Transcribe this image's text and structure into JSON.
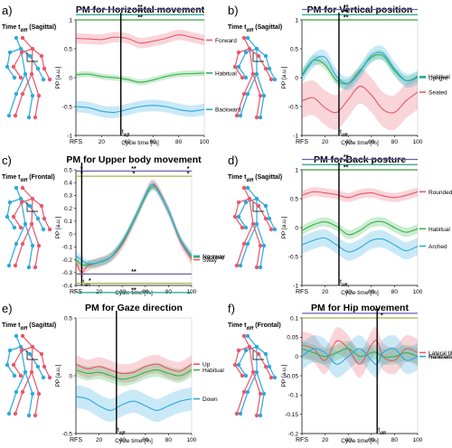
{
  "colors": {
    "top": "#e8576a",
    "habitual": "#36b24a",
    "bottom": "#2aa9df",
    "sig_purple": "#6b5fa8",
    "sig_olive": "#a8b24a",
    "sig_teal": "#2a9d8f",
    "sig_green": "#3c9a3c"
  },
  "chart_data": [
    {
      "panel_label": "a)",
      "type": "line",
      "title": "PM for Horizontal movement",
      "timing_label": "Time t",
      "timing_sub": "diff",
      "timing_view": "(Sagittal)",
      "xlabel": "Cycle time [%]",
      "ylabel": "PP [a.u.]",
      "xlim": [
        0,
        100
      ],
      "ylim": [
        -1,
        1
      ],
      "xticks": [
        "RFS",
        "20",
        "40",
        "60",
        "80",
        "100"
      ],
      "yticks": [
        "-1",
        "-0.5",
        "0",
        "0.5",
        "1"
      ],
      "ytick_values": [
        -1,
        -0.5,
        0,
        0.5,
        1
      ],
      "tdiff": 35,
      "tdiff_label": "t",
      "tdiff_sub": "diff",
      "significance": [
        {
          "y": 1.18,
          "color": "#6b5fa8",
          "stars": [
            {
              "x": 50,
              "text": "**"
            }
          ]
        },
        {
          "y": 1.09,
          "color": "#2a9d8f",
          "stars": [
            {
              "x": 50,
              "text": "**"
            }
          ]
        },
        {
          "y": 1.0,
          "color": "#3c9a3c",
          "stars": [
            {
              "x": 50,
              "text": "**"
            }
          ]
        }
      ],
      "series": [
        {
          "name": "Forward",
          "color": "#e8576a",
          "band": 0.09,
          "x": [
            0,
            10,
            20,
            30,
            40,
            50,
            60,
            70,
            80,
            90,
            100
          ],
          "values": [
            0.68,
            0.67,
            0.66,
            0.7,
            0.68,
            0.6,
            0.63,
            0.68,
            0.74,
            0.7,
            0.65
          ]
        },
        {
          "name": "Habitual",
          "color": "#36b24a",
          "band": 0.05,
          "x": [
            0,
            10,
            20,
            30,
            40,
            50,
            60,
            70,
            80,
            90,
            100
          ],
          "values": [
            0.05,
            0.06,
            0.02,
            0.0,
            -0.03,
            -0.08,
            -0.04,
            0.02,
            0.06,
            0.07,
            0.08
          ]
        },
        {
          "name": "Backward",
          "color": "#2aa9df",
          "band": 0.1,
          "x": [
            0,
            10,
            20,
            30,
            40,
            50,
            60,
            70,
            80,
            90,
            100
          ],
          "values": [
            -0.5,
            -0.52,
            -0.58,
            -0.6,
            -0.55,
            -0.5,
            -0.48,
            -0.5,
            -0.55,
            -0.58,
            -0.55
          ]
        }
      ]
    },
    {
      "panel_label": "b)",
      "type": "line",
      "title": "PM for Vertical position",
      "timing_label": "Time t",
      "timing_sub": "diff",
      "timing_view": "(Sagittal)",
      "xlabel": "Cycle time [%]",
      "ylabel": "PP [a.u.]",
      "xlim": [
        0,
        100
      ],
      "ylim": [
        -1,
        1
      ],
      "xticks": [
        "RFS",
        "20",
        "40",
        "60",
        "80",
        "100"
      ],
      "yticks": [
        "-1",
        "-0.5",
        "0",
        "0.5",
        "1"
      ],
      "ytick_values": [
        -1,
        -0.5,
        0,
        0.5,
        1
      ],
      "tdiff": 32,
      "tdiff_label": "t",
      "tdiff_sub": "diff",
      "significance": [
        {
          "y": 1.18,
          "color": "#6b5fa8",
          "stars": [
            {
              "x": 38,
              "text": "**"
            }
          ]
        },
        {
          "y": 1.09,
          "color": "#2a9d8f",
          "stars": [
            {
              "x": 38,
              "text": "**"
            }
          ]
        },
        {
          "y": 1.0,
          "color": "#3c9a3c",
          "stars": [
            {
              "x": 38,
              "text": "**"
            }
          ]
        }
      ],
      "series": [
        {
          "name": "Seated",
          "color": "#e8576a",
          "band": 0.3,
          "x": [
            0,
            10,
            20,
            30,
            40,
            50,
            60,
            70,
            80,
            90,
            100
          ],
          "values": [
            -0.4,
            -0.35,
            -0.52,
            -0.6,
            -0.38,
            -0.15,
            -0.3,
            -0.55,
            -0.6,
            -0.4,
            -0.25
          ]
        },
        {
          "name": "Habitual",
          "color": "#36b24a",
          "band": 0.08,
          "x": [
            0,
            10,
            20,
            30,
            40,
            50,
            60,
            70,
            80,
            90,
            100
          ],
          "values": [
            0.05,
            0.3,
            0.22,
            -0.05,
            -0.1,
            0.12,
            0.35,
            0.38,
            0.12,
            -0.05,
            0.02
          ]
        },
        {
          "name": "Upright",
          "color": "#2aa9df",
          "band": 0.12,
          "x": [
            0,
            10,
            20,
            30,
            40,
            50,
            60,
            70,
            80,
            90,
            100
          ],
          "values": [
            0.02,
            0.3,
            0.35,
            0.02,
            -0.1,
            0.1,
            0.38,
            0.42,
            0.15,
            -0.05,
            0.0
          ]
        }
      ]
    },
    {
      "panel_label": "c)",
      "type": "line",
      "title": "PM for Upper body movement",
      "timing_label": "Time t",
      "timing_sub": "diff",
      "timing_view": "(Frontal)",
      "xlabel": "Cycle time [%]",
      "ylabel": "PP [a.u.]",
      "xlim": [
        0,
        100
      ],
      "ylim": [
        -0.4,
        0.5
      ],
      "xticks": [
        "RFS",
        "20",
        "40",
        "60",
        "80",
        "100"
      ],
      "yticks": [
        "-0.4",
        "-0.3",
        "-0.2",
        "-0.1",
        "0",
        "0.1",
        "0.2",
        "0.3",
        "0.4",
        "0.5"
      ],
      "ytick_values": [
        -0.4,
        -0.3,
        -0.2,
        -0.1,
        0,
        0.1,
        0.2,
        0.3,
        0.4,
        0.5
      ],
      "tdiff": 5,
      "tdiff_label": "t",
      "tdiff_sub": "diff",
      "significance": [
        {
          "y": 0.49,
          "color": "#6b5fa8",
          "stars": [
            {
              "x": 5,
              "text": "*"
            },
            {
              "x": 50,
              "text": "**"
            },
            {
              "x": 97,
              "text": "*"
            }
          ]
        },
        {
          "y": 0.45,
          "color": "#a8b24a",
          "stars": [
            {
              "x": 5,
              "text": "*"
            },
            {
              "x": 50,
              "text": "*"
            },
            {
              "x": 97,
              "text": "*"
            }
          ]
        }
      ],
      "series": [
        {
          "name": "Sway",
          "color": "#e8576a",
          "band": 0.04,
          "x": [
            0,
            5,
            10,
            20,
            30,
            40,
            50,
            60,
            65,
            70,
            80,
            90,
            100
          ],
          "values": [
            -0.22,
            -0.3,
            -0.25,
            -0.22,
            -0.18,
            -0.08,
            0.1,
            0.3,
            0.38,
            0.36,
            0.18,
            -0.05,
            -0.2
          ]
        },
        {
          "name": "Habitual",
          "color": "#36b24a",
          "band": 0.03,
          "x": [
            0,
            5,
            10,
            20,
            30,
            40,
            50,
            60,
            65,
            70,
            80,
            90,
            100
          ],
          "values": [
            -0.2,
            -0.24,
            -0.24,
            -0.22,
            -0.18,
            -0.07,
            0.1,
            0.29,
            0.36,
            0.35,
            0.18,
            -0.04,
            -0.18
          ]
        },
        {
          "name": "No sway",
          "color": "#2aa9df",
          "band": 0.03,
          "x": [
            0,
            5,
            10,
            20,
            30,
            40,
            50,
            60,
            65,
            70,
            80,
            90,
            100
          ],
          "values": [
            -0.17,
            -0.2,
            -0.23,
            -0.22,
            -0.18,
            -0.06,
            0.11,
            0.3,
            0.38,
            0.35,
            0.18,
            -0.04,
            -0.17
          ]
        }
      ]
    },
    {
      "panel_label": "d)",
      "type": "line",
      "title": "PM for Back posture",
      "timing_label": "Time t",
      "timing_sub": "diff",
      "timing_view": "(Sagittal)",
      "xlabel": "Cycle time [%]",
      "ylabel": "PP [a.u.]",
      "xlim": [
        0,
        100
      ],
      "ylim": [
        -1,
        1
      ],
      "xticks": [
        "RFS",
        "20",
        "40",
        "60",
        "80",
        "100"
      ],
      "yticks": [
        "-1",
        "-0.5",
        "0",
        "0.5",
        "1"
      ],
      "ytick_values": [
        -1,
        -0.5,
        0,
        0.5,
        1
      ],
      "tdiff": 32,
      "tdiff_label": "t",
      "tdiff_sub": "diff",
      "significance": [
        {
          "y": 1.18,
          "color": "#6b5fa8",
          "stars": [
            {
              "x": 38,
              "text": "**"
            }
          ]
        },
        {
          "y": 1.09,
          "color": "#2a9d8f",
          "stars": [
            {
              "x": 38,
              "text": "**"
            }
          ]
        },
        {
          "y": 1.0,
          "color": "#3c9a3c",
          "stars": [
            {
              "x": 38,
              "text": "**"
            }
          ]
        }
      ],
      "series": [
        {
          "name": "Rounded",
          "color": "#e8576a",
          "band": 0.08,
          "x": [
            0,
            10,
            20,
            30,
            40,
            50,
            60,
            70,
            80,
            90,
            100
          ],
          "values": [
            0.56,
            0.62,
            0.6,
            0.57,
            0.52,
            0.58,
            0.6,
            0.55,
            0.52,
            0.56,
            0.62
          ]
        },
        {
          "name": "Habitual",
          "color": "#36b24a",
          "band": 0.08,
          "x": [
            0,
            10,
            20,
            30,
            40,
            50,
            60,
            70,
            80,
            90,
            100
          ],
          "values": [
            -0.05,
            0.05,
            0.1,
            0.02,
            -0.12,
            -0.05,
            0.08,
            0.1,
            0.0,
            -0.08,
            -0.02
          ]
        },
        {
          "name": "Arched",
          "color": "#2aa9df",
          "band": 0.15,
          "x": [
            0,
            10,
            20,
            30,
            40,
            50,
            60,
            70,
            80,
            90,
            100
          ],
          "values": [
            -0.3,
            -0.22,
            -0.18,
            -0.3,
            -0.42,
            -0.35,
            -0.22,
            -0.2,
            -0.3,
            -0.4,
            -0.32
          ]
        }
      ]
    },
    {
      "panel_label": "e)",
      "type": "line",
      "title": "PM for Gaze direction",
      "timing_label": "Time t",
      "timing_sub": "diff",
      "timing_view": "(Sagittal)",
      "xlabel": "Cycle time [%]",
      "ylabel": "PP [a.u.]",
      "xlim": [
        0,
        100
      ],
      "ylim": [
        -0.5,
        0.5
      ],
      "xticks": [
        "RFS",
        "20",
        "40",
        "60",
        "80",
        "100"
      ],
      "yticks": [
        "-0.5",
        "0",
        "0.5"
      ],
      "ytick_values": [
        -0.5,
        0,
        0.5
      ],
      "tdiff": 35,
      "tdiff_label": "t",
      "tdiff_sub": "diff",
      "significance": [
        {
          "y": 0.88,
          "color": "#6b5fa8",
          "stars": [
            {
              "x": 50,
              "text": "**"
            }
          ]
        },
        {
          "y": 0.8,
          "color": "#a8b24a",
          "stars": [
            {
              "x": 12,
              "text": "*"
            }
          ]
        },
        {
          "y": 0.72,
          "color": "#2a9d8f",
          "stars": [
            {
              "x": 50,
              "text": "**"
            }
          ]
        }
      ],
      "series": [
        {
          "name": "Up",
          "color": "#e8576a",
          "band": 0.08,
          "x": [
            0,
            10,
            20,
            30,
            40,
            50,
            60,
            70,
            80,
            90,
            100
          ],
          "values": [
            0.1,
            0.06,
            0.08,
            0.05,
            0.02,
            0.03,
            0.08,
            0.1,
            0.06,
            0.04,
            0.1
          ]
        },
        {
          "name": "Habitual",
          "color": "#36b24a",
          "band": 0.06,
          "x": [
            0,
            10,
            20,
            30,
            40,
            50,
            60,
            70,
            80,
            90,
            100
          ],
          "values": [
            0.05,
            0.02,
            0.03,
            0.0,
            -0.03,
            -0.01,
            0.03,
            0.05,
            0.02,
            0.0,
            0.05
          ]
        },
        {
          "name": "Down",
          "color": "#2aa9df",
          "band": 0.1,
          "x": [
            0,
            10,
            20,
            30,
            40,
            50,
            60,
            70,
            80,
            90,
            100
          ],
          "values": [
            -0.18,
            -0.2,
            -0.26,
            -0.3,
            -0.25,
            -0.22,
            -0.26,
            -0.3,
            -0.26,
            -0.22,
            -0.2
          ]
        }
      ]
    },
    {
      "panel_label": "f)",
      "type": "line",
      "title": "PM for Hip movement",
      "timing_label": "Time t",
      "timing_sub": "diff",
      "timing_view": "(Frontal)",
      "xlabel": "Cycle time [%]",
      "ylabel": "PP [a.u.]",
      "xlim": [
        0,
        100
      ],
      "ylim": [
        -0.2,
        0.1
      ],
      "xticks": [
        "RFS",
        "20",
        "40",
        "60",
        "80",
        "100"
      ],
      "yticks": [
        "-0.2",
        "-0.15",
        "-0.1",
        "-0.05",
        "0",
        "0.05",
        "0.1"
      ],
      "ytick_values": [
        -0.2,
        -0.15,
        -0.1,
        -0.05,
        0,
        0.05,
        0.1
      ],
      "tdiff": 65,
      "tdiff_label": "t",
      "tdiff_sub": "diff",
      "significance": [
        {
          "y": 0.112,
          "color": "#6b5fa8",
          "stars": [
            {
              "x": 17,
              "text": "*"
            },
            {
              "x": 65,
              "text": "**"
            }
          ]
        },
        {
          "y": 0.1,
          "color": "#a8b24a",
          "stars": [
            {
              "x": 69,
              "text": "*"
            }
          ]
        }
      ],
      "series": [
        {
          "name": "Lateral tilt",
          "color": "#e8576a",
          "band": 0.035,
          "x": [
            0,
            10,
            20,
            30,
            40,
            50,
            60,
            65,
            70,
            80,
            90,
            100
          ],
          "values": [
            0.03,
            0.02,
            -0.01,
            0.04,
            0.02,
            -0.02,
            0.03,
            0.04,
            0.0,
            -0.01,
            0.02,
            0.01
          ]
        },
        {
          "name": "Habitual",
          "color": "#36b24a",
          "band": 0.02,
          "x": [
            0,
            10,
            20,
            30,
            40,
            50,
            60,
            65,
            70,
            80,
            90,
            100
          ],
          "values": [
            0.02,
            0.01,
            0.0,
            0.01,
            0.02,
            0.0,
            0.01,
            0.01,
            0.0,
            0.0,
            0.01,
            0.0
          ]
        },
        {
          "name": "No lateral tilt",
          "color": "#2aa9df",
          "band": 0.035,
          "x": [
            0,
            10,
            20,
            30,
            40,
            50,
            60,
            65,
            70,
            80,
            90,
            100
          ],
          "values": [
            0.0,
            0.02,
            0.01,
            -0.02,
            0.0,
            0.02,
            -0.01,
            -0.02,
            0.01,
            0.02,
            -0.01,
            0.0
          ]
        }
      ]
    }
  ]
}
